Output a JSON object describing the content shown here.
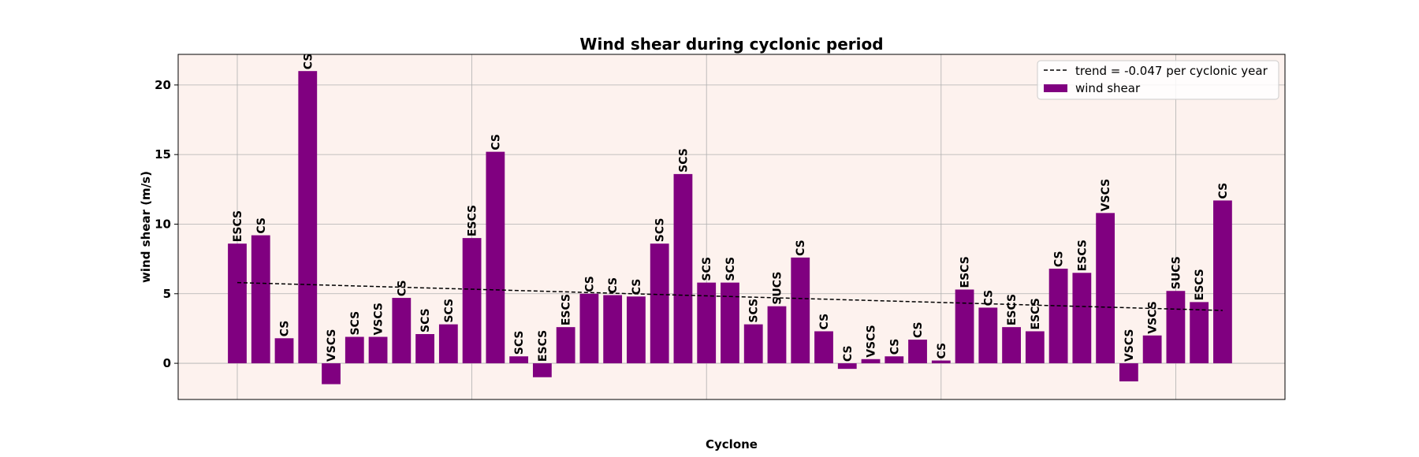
{
  "chart_data": {
    "type": "bar",
    "title": "Wind shear during cyclonic period",
    "xlabel": "Cyclone",
    "ylabel": "wind shear (m/s)",
    "ylim": [
      -2.6,
      22.2
    ],
    "yticks": [
      0,
      5,
      10,
      15,
      20
    ],
    "grid": true,
    "legend_position": "top-right",
    "colors": {
      "plot_background": "#fdf2ee",
      "bar": "#800080",
      "grid": "#b0b0b0",
      "trend": "#000000"
    },
    "legend": {
      "trend_label": "trend = -0.047 per cyclonic year",
      "bar_label": "wind shear"
    },
    "categories": [
      "ESCS",
      "CS",
      "CS",
      "CS",
      "VSCS",
      "SCS",
      "VSCS",
      "CS",
      "SCS",
      "SCS",
      "ESCS",
      "CS",
      "SCS",
      "ESCS",
      "ESCS",
      "CS",
      "CS",
      "CS",
      "SCS",
      "SCS",
      "SCS",
      "SCS",
      "SCS",
      "SUCS",
      "CS",
      "CS",
      "CS",
      "VSCS",
      "CS",
      "CS",
      "CS",
      "ESCS",
      "CS",
      "ESCS",
      "ESCS",
      "CS",
      "ESCS",
      "VSCS",
      "VSCS",
      "VSCS",
      "SUCS",
      "ESCS",
      "CS"
    ],
    "series": [
      {
        "name": "wind shear",
        "values": [
          8.6,
          9.2,
          1.8,
          21.0,
          -1.5,
          1.9,
          1.9,
          4.7,
          2.1,
          2.8,
          9.0,
          15.2,
          0.5,
          -1.0,
          2.6,
          5.0,
          4.9,
          4.8,
          8.6,
          13.6,
          5.8,
          5.8,
          2.8,
          4.1,
          7.6,
          2.3,
          -0.4,
          0.3,
          0.5,
          1.7,
          0.2,
          5.3,
          4.0,
          2.6,
          2.3,
          6.8,
          6.5,
          10.8,
          -1.3,
          2.0,
          5.2,
          4.4,
          11.7
        ]
      },
      {
        "name": "trend = -0.047 per cyclonic year",
        "type": "line",
        "x_start_index": 0,
        "x_end_index": 42,
        "y_start": 5.8,
        "y_end": 3.8
      }
    ]
  }
}
